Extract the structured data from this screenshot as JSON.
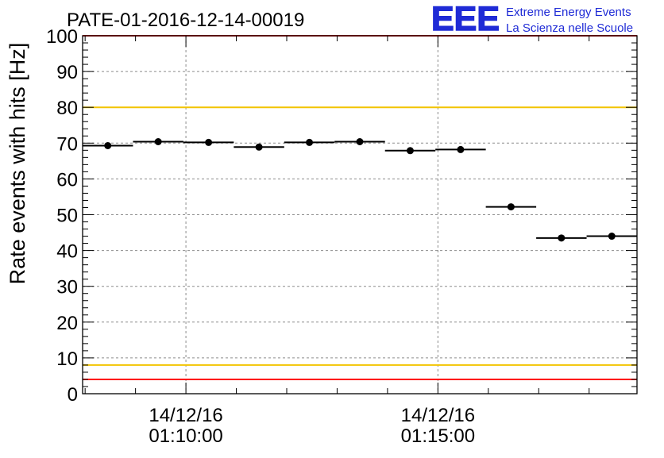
{
  "header": {
    "run_id": "PATE-01-2016-12-14-00019",
    "logo_text": "EEE",
    "logo_line1": "Extreme Energy Events",
    "logo_line2": "La Scienza nelle Scuole"
  },
  "colors": {
    "logo": "#1f2bd6",
    "red_limit": "#ff0000",
    "yellow_limit": "#f2c400",
    "grid": "#8c8c8c",
    "points": "#000000"
  },
  "chart_data": {
    "type": "scatter",
    "title": "PATE-01-2016-12-14-00019",
    "xlabel": "",
    "ylabel": "Rate events with hits [Hz]",
    "ylim": [
      0,
      100
    ],
    "yticks": [
      0,
      10,
      20,
      30,
      40,
      50,
      60,
      70,
      80,
      90,
      100
    ],
    "x_unit": "seconds",
    "xlim": [
      "14/12/16 01:07:57",
      "14/12/16 01:18:57"
    ],
    "xticks": [
      {
        "date": "14/12/16",
        "time": "01:10:00"
      },
      {
        "date": "14/12/16",
        "time": "01:15:00"
      }
    ],
    "grid": true,
    "series": [
      {
        "points": [
          {
            "x": "01:08:27",
            "y": 69.3
          },
          {
            "x": "01:09:27",
            "y": 70.4
          },
          {
            "x": "01:10:27",
            "y": 70.2
          },
          {
            "x": "01:11:27",
            "y": 68.9
          },
          {
            "x": "01:12:27",
            "y": 70.2
          },
          {
            "x": "01:13:27",
            "y": 70.4
          },
          {
            "x": "01:14:27",
            "y": 67.9
          },
          {
            "x": "01:15:27",
            "y": 68.2
          },
          {
            "x": "01:16:27",
            "y": 52.2
          },
          {
            "x": "01:17:27",
            "y": 43.5
          },
          {
            "x": "01:18:27",
            "y": 44.0
          }
        ],
        "x_half_width_seconds": 30
      }
    ],
    "reference_lines": [
      {
        "y": 100,
        "color": "red"
      },
      {
        "y": 80,
        "color": "yellow"
      },
      {
        "y": 8,
        "color": "yellow"
      },
      {
        "y": 4,
        "color": "red"
      }
    ]
  }
}
